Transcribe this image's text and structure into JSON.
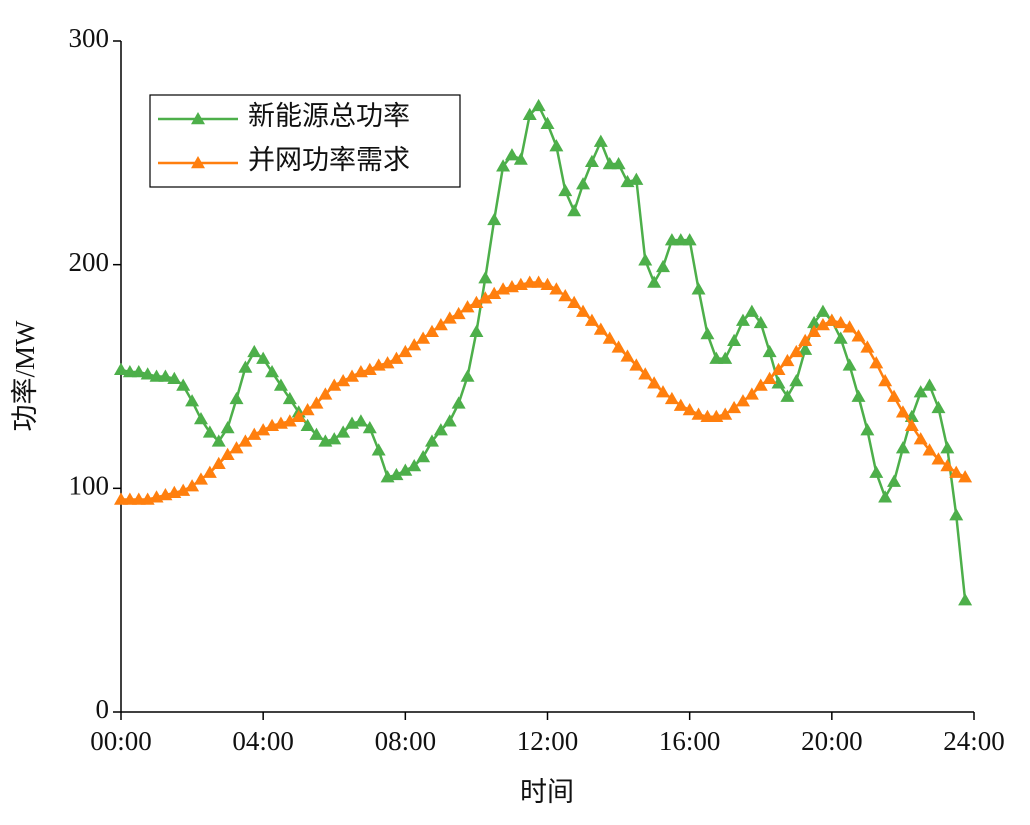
{
  "chart_data": {
    "type": "line",
    "xlabel": "时间",
    "ylabel": "功率/MW",
    "xlim": [
      0,
      24
    ],
    "ylim": [
      0,
      300
    ],
    "xticks": [
      {
        "value": 0,
        "label": "00:00"
      },
      {
        "value": 4,
        "label": "04:00"
      },
      {
        "value": 8,
        "label": "08:00"
      },
      {
        "value": 12,
        "label": "12:00"
      },
      {
        "value": 16,
        "label": "16:00"
      },
      {
        "value": 20,
        "label": "20:00"
      },
      {
        "value": 24,
        "label": "24:00"
      }
    ],
    "yticks": [
      0,
      100,
      200,
      300
    ],
    "legend": "upper left",
    "x": [
      0,
      0.25,
      0.5,
      0.75,
      1,
      1.25,
      1.5,
      1.75,
      2,
      2.25,
      2.5,
      2.75,
      3,
      3.25,
      3.5,
      3.75,
      4,
      4.25,
      4.5,
      4.75,
      5,
      5.25,
      5.5,
      5.75,
      6,
      6.25,
      6.5,
      6.75,
      7,
      7.25,
      7.5,
      7.75,
      8,
      8.25,
      8.5,
      8.75,
      9,
      9.25,
      9.5,
      9.75,
      10,
      10.25,
      10.5,
      10.75,
      11,
      11.25,
      11.5,
      11.75,
      12,
      12.25,
      12.5,
      12.75,
      13,
      13.25,
      13.5,
      13.75,
      14,
      14.25,
      14.5,
      14.75,
      15,
      15.25,
      15.5,
      15.75,
      16,
      16.25,
      16.5,
      16.75,
      17,
      17.25,
      17.5,
      17.75,
      18,
      18.25,
      18.5,
      18.75,
      19,
      19.25,
      19.5,
      19.75,
      20,
      20.25,
      20.5,
      20.75,
      21,
      21.25,
      21.5,
      21.75,
      22,
      22.25,
      22.5,
      22.75,
      23,
      23.25,
      23.5,
      23.75
    ],
    "series": [
      {
        "name": "新能源总功率",
        "color": "#4daf4a",
        "values": [
          153,
          152,
          152,
          151,
          150,
          150,
          149,
          146,
          139,
          131,
          125,
          121,
          127,
          140,
          154,
          161,
          158,
          152,
          146,
          140,
          134,
          128,
          124,
          121,
          122,
          125,
          129,
          130,
          127,
          117,
          105,
          106,
          108,
          110,
          114,
          121,
          126,
          130,
          138,
          150,
          170,
          194,
          220,
          244,
          249,
          247,
          267,
          271,
          263,
          253,
          233,
          224,
          236,
          246,
          255,
          245,
          245,
          237,
          238,
          202,
          192,
          199,
          211,
          211,
          211,
          189,
          169,
          158,
          158,
          166,
          175,
          179,
          174,
          161,
          147,
          141,
          148,
          162,
          174,
          179,
          175,
          167,
          155,
          141,
          126,
          107,
          96,
          103,
          118,
          132,
          143,
          146,
          136,
          118,
          88,
          50
        ]
      },
      {
        "name": "并网功率需求",
        "color": "#ff7f0e",
        "values": [
          95,
          95,
          95,
          95,
          96,
          97,
          98,
          99,
          101,
          104,
          107,
          111,
          115,
          118,
          121,
          124,
          126,
          128,
          129,
          130,
          132,
          135,
          138,
          142,
          146,
          148,
          150,
          152,
          153,
          155,
          156,
          158,
          161,
          164,
          167,
          170,
          173,
          176,
          178,
          181,
          183,
          185,
          187,
          189,
          190,
          191,
          192,
          192,
          191,
          189,
          186,
          183,
          179,
          175,
          171,
          167,
          163,
          159,
          155,
          151,
          147,
          143,
          140,
          137,
          135,
          133,
          132,
          132,
          133,
          136,
          139,
          142,
          146,
          149,
          153,
          157,
          161,
          166,
          170,
          173,
          175,
          174,
          172,
          168,
          163,
          156,
          148,
          141,
          134,
          128,
          122,
          117,
          113,
          110,
          107,
          105
        ]
      }
    ]
  }
}
